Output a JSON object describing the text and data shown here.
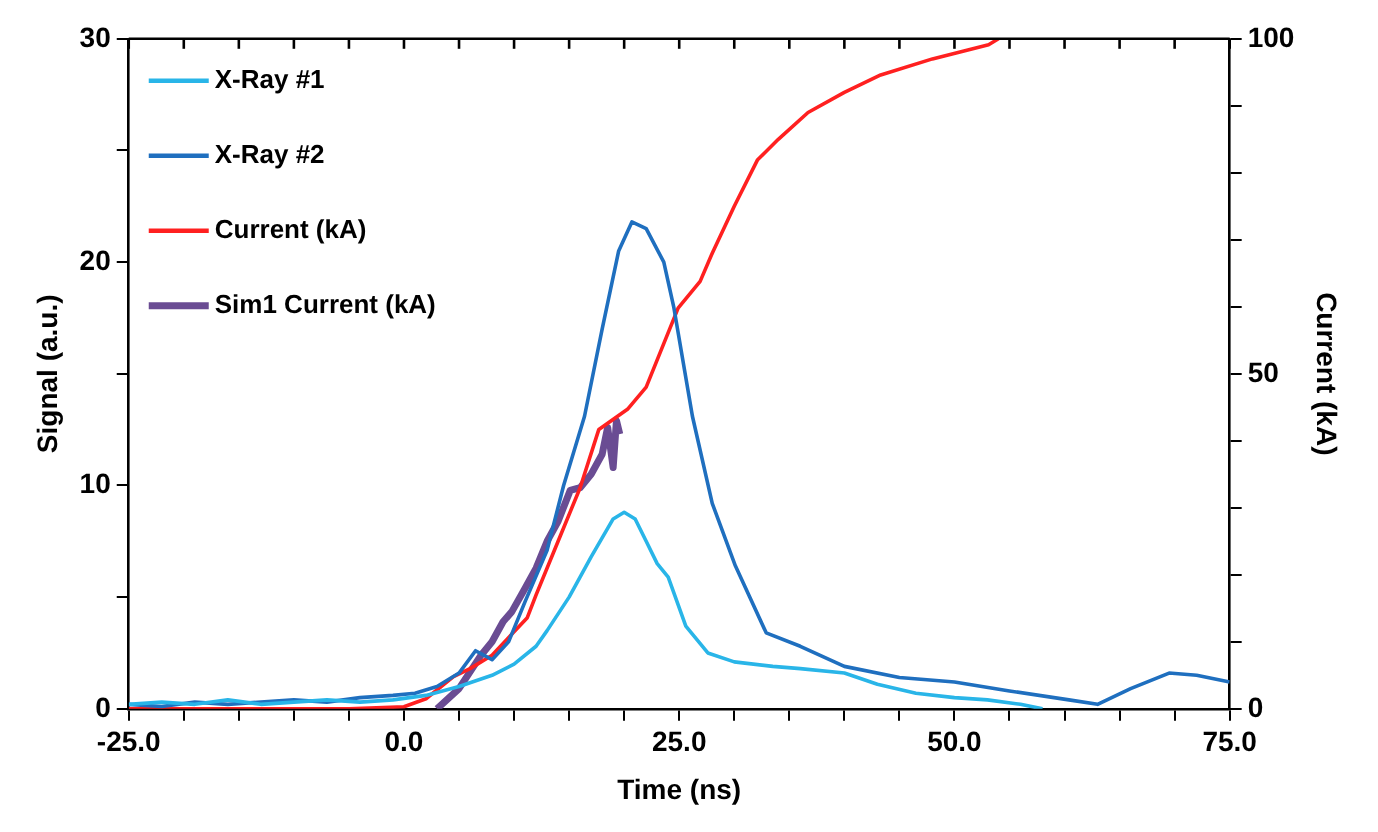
{
  "chart_data": {
    "type": "line",
    "xlabel": "Time (ns)",
    "ylabel": "Signal (a.u.)",
    "y2label": "Current (kA)",
    "xlim": [
      -25,
      75
    ],
    "xticks": [
      {
        "value": -25,
        "label": "-25.0"
      },
      {
        "value": -20,
        "label": null
      },
      {
        "value": -15,
        "label": null
      },
      {
        "value": -10,
        "label": null
      },
      {
        "value": -5,
        "label": null
      },
      {
        "value": 0,
        "label": "0.0"
      },
      {
        "value": 5,
        "label": null
      },
      {
        "value": 10,
        "label": null
      },
      {
        "value": 15,
        "label": null
      },
      {
        "value": 20,
        "label": null
      },
      {
        "value": 25,
        "label": "25.0"
      },
      {
        "value": 30,
        "label": null
      },
      {
        "value": 35,
        "label": null
      },
      {
        "value": 40,
        "label": null
      },
      {
        "value": 45,
        "label": null
      },
      {
        "value": 50,
        "label": "50.0"
      },
      {
        "value": 55,
        "label": null
      },
      {
        "value": 60,
        "label": null
      },
      {
        "value": 65,
        "label": null
      },
      {
        "value": 70,
        "label": null
      },
      {
        "value": 75,
        "label": "75.0"
      }
    ],
    "ylim": [
      0,
      30
    ],
    "yticks": [
      0,
      {
        "value": 5,
        "label": null
      },
      10,
      {
        "value": 15,
        "label": null
      },
      20,
      {
        "value": 25,
        "label": null
      },
      30
    ],
    "y2lim": [
      0,
      100
    ],
    "y2ticks": [
      0,
      {
        "value": 10,
        "label": null
      },
      {
        "value": 20,
        "label": null
      },
      {
        "value": 30,
        "label": null
      },
      {
        "value": 40,
        "label": null
      },
      50,
      {
        "value": 60,
        "label": null
      },
      {
        "value": 70,
        "label": null
      },
      {
        "value": 80,
        "label": null
      },
      {
        "value": 90,
        "label": null
      },
      100
    ],
    "grid": false,
    "legend": "top left",
    "marker": "none",
    "line_style": "solid",
    "series": [
      {
        "name": "X-Ray #1",
        "color": "#29b5e8",
        "x": [
          -25,
          -22,
          -19,
          -16,
          -13,
          -10,
          -7,
          -4,
          -1,
          2,
          5,
          8,
          10,
          12,
          13,
          15,
          17,
          19,
          20,
          21,
          22,
          23,
          24,
          25.6,
          27.6,
          30,
          33.5,
          36,
          40,
          43,
          46.5,
          50,
          53,
          56,
          58
        ],
        "values": [
          0.2,
          0.3,
          0.2,
          0.4,
          0.2,
          0.3,
          0.4,
          0.3,
          0.4,
          0.6,
          1.0,
          1.5,
          2.0,
          2.8,
          3.5,
          5.0,
          6.8,
          8.5,
          8.8,
          8.5,
          7.5,
          6.5,
          5.9,
          3.7,
          2.5,
          2.1,
          1.9,
          1.8,
          1.6,
          1.1,
          0.7,
          0.5,
          0.4,
          0.2,
          0.0
        ]
      },
      {
        "name": "X-Ray #2",
        "color": "#1f6fbf",
        "x": [
          -25,
          -22,
          -19,
          -16,
          -13,
          -10,
          -7,
          -4,
          -1,
          1,
          3,
          5,
          6.5,
          8,
          9.5,
          11,
          13,
          14.5,
          16.4,
          18,
          19.5,
          20.7,
          22,
          23.6,
          24.5,
          26.2,
          28,
          30.1,
          32.9,
          36,
          40,
          45,
          50,
          55,
          60.4,
          63,
          66,
          69.5,
          72,
          75
        ],
        "values": [
          0.2,
          0.1,
          0.3,
          0.2,
          0.3,
          0.4,
          0.3,
          0.5,
          0.6,
          0.7,
          1.0,
          1.6,
          2.6,
          2.2,
          3.0,
          4.8,
          7.1,
          10.0,
          13.1,
          17.0,
          20.5,
          21.8,
          21.5,
          20.0,
          18.0,
          13.1,
          9.2,
          6.4,
          3.4,
          2.8,
          1.9,
          1.4,
          1.2,
          0.8,
          0.4,
          0.2,
          0.9,
          1.6,
          1.5,
          1.2
        ]
      },
      {
        "name": "Current (kA)",
        "color": "#ff2020",
        "axis": "y2",
        "x": [
          -25,
          -5,
          0,
          2,
          4.5,
          6,
          8,
          11.2,
          12,
          14,
          16,
          17.7,
          20.3,
          22,
          24.9,
          26.9,
          28,
          30,
          32.1,
          34,
          36.7,
          40,
          43.3,
          48,
          53.1,
          54
        ],
        "values": [
          0,
          0,
          0.3,
          1.5,
          4.8,
          6,
          8,
          13.6,
          17,
          25,
          33,
          41.7,
          44.7,
          48,
          59.8,
          63.8,
          68,
          75,
          81.9,
          85,
          89,
          92,
          94.6,
          97,
          99.1,
          100
        ]
      },
      {
        "name": "Sim1 Current (kA)",
        "color": "#6a4c93",
        "axis": "y2",
        "x": [
          3,
          5,
          7,
          8,
          9,
          9.8,
          11,
          12,
          13,
          14,
          15.1,
          16,
          17,
          18,
          18.5,
          19,
          19.3,
          19.6
        ],
        "values": [
          0,
          3,
          8,
          10,
          13,
          14.5,
          18,
          21,
          25,
          28,
          32.6,
          33,
          35,
          38,
          42,
          36,
          43,
          41
        ]
      }
    ]
  }
}
